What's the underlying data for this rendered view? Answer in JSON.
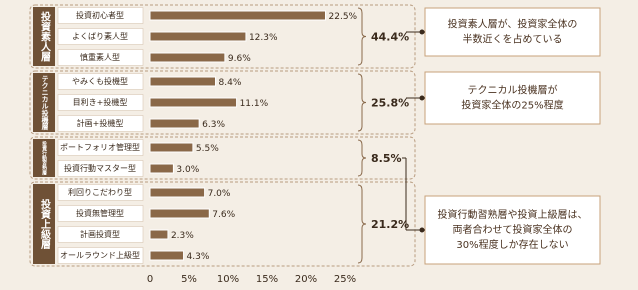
{
  "chart_data": {
    "type": "bar",
    "orientation": "horizontal",
    "color": "#8a6848",
    "xlim": [
      0,
      25
    ],
    "xticks": [
      0,
      {
        "value": 5,
        "label": "5%"
      },
      {
        "value": 10,
        "label": "10%"
      },
      {
        "value": 15,
        "label": "15%"
      },
      {
        "value": 20,
        "label": "20%"
      },
      {
        "value": 25,
        "label": "25%"
      }
    ],
    "groups": [
      {
        "name": "投資素人層",
        "categories": [
          "投資初心者型",
          "よくばり素人型",
          "慎重素人型"
        ],
        "values": [
          22.5,
          12.3,
          9.6
        ],
        "value_labels": [
          "22.5%",
          "12.3%",
          "9.6%"
        ],
        "total": {
          "value": 44.4,
          "label": "44.4%"
        },
        "callout": [
          "投資素人層が、投資家全体の",
          "半数近くを占めている"
        ]
      },
      {
        "name": "テクニカル投機層",
        "categories": [
          "やみくも投機型",
          "目利き+投機型",
          "計画+投機型"
        ],
        "values": [
          8.4,
          11.1,
          6.3
        ],
        "value_labels": [
          "8.4%",
          "11.1%",
          "6.3%"
        ],
        "total": {
          "value": 25.8,
          "label": "25.8%"
        },
        "callout": [
          "テクニカル投機層が",
          "投資家全体の25%程度"
        ]
      },
      {
        "name": "投資行動習熟層",
        "categories": [
          "ポートフォリオ管理型",
          "投資行動マスター型"
        ],
        "values": [
          5.5,
          3.0
        ],
        "value_labels": [
          "5.5%",
          "3.0%"
        ],
        "total": {
          "value": 8.5,
          "label": "8.5%"
        }
      },
      {
        "name": "投資上級層",
        "categories": [
          "利回りこだわり型",
          "投資無管理型",
          "計画投資型",
          "オールラウンド上級型"
        ],
        "values": [
          7.0,
          7.6,
          2.3,
          4.3
        ],
        "value_labels": [
          "7.0%",
          "7.6%",
          "2.3%",
          "4.3%"
        ],
        "total": {
          "value": 21.2,
          "label": "21.2%"
        },
        "callout": [
          "投資行動習熟層や投資上級層は、",
          "両者合わせて投資家全体の",
          "30%程度しか存在しない"
        ]
      }
    ]
  }
}
